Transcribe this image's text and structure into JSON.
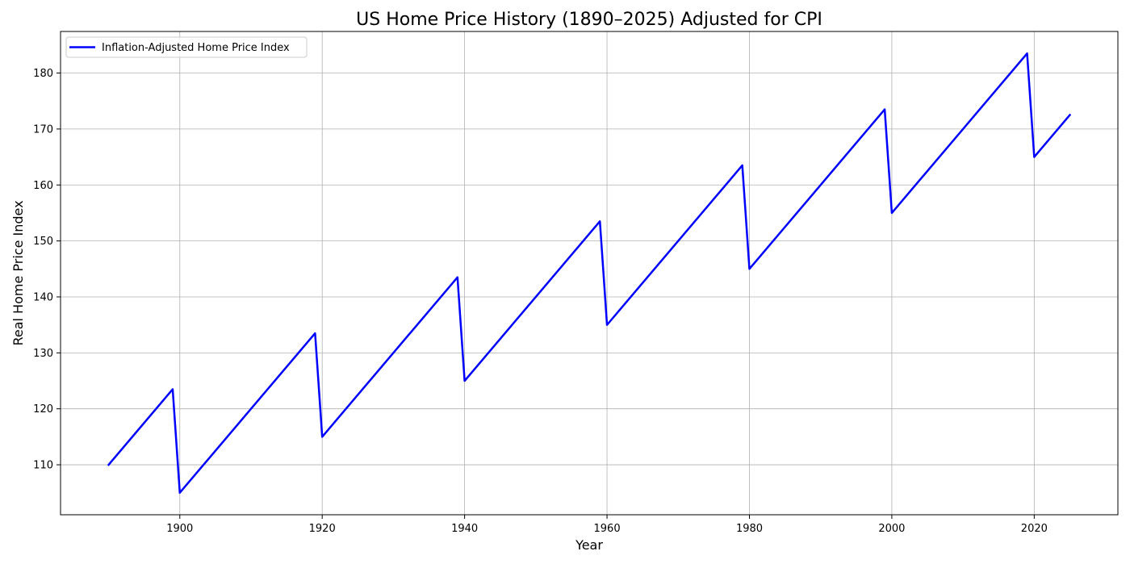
{
  "chart_data": {
    "type": "line",
    "title": "US Home Price History (1890–2025) Adjusted for CPI",
    "xlabel": "Year",
    "ylabel": "Real Home Price Index",
    "xlim": [
      1883.25,
      2031.75
    ],
    "ylim": [
      101.07,
      187.43
    ],
    "grid": true,
    "legend_position": "top-left",
    "x_ticks": [
      1900,
      1920,
      1940,
      1960,
      1980,
      2000,
      2020
    ],
    "y_ticks": [
      110,
      120,
      130,
      140,
      150,
      160,
      170,
      180
    ],
    "series": [
      {
        "name": "Inflation-Adjusted Home Price Index",
        "color": "#0000ff",
        "x": [
          1890,
          1899,
          1900,
          1919,
          1920,
          1939,
          1940,
          1959,
          1960,
          1979,
          1980,
          1999,
          2000,
          2019,
          2020,
          2025
        ],
        "y": [
          110,
          123.5,
          105,
          133.5,
          115,
          143.5,
          125,
          153.5,
          135,
          163.5,
          145,
          173.5,
          155,
          183.5,
          165,
          172.5
        ]
      }
    ]
  }
}
